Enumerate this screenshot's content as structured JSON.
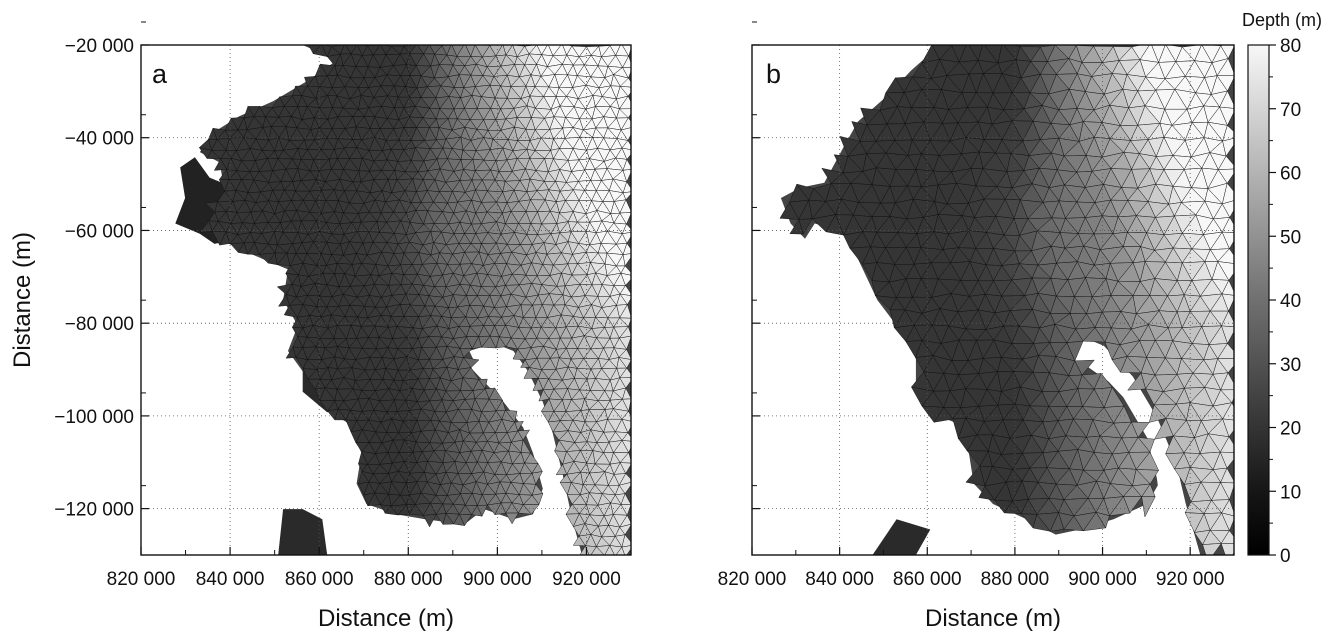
{
  "chart_data": [
    {
      "type": "heatmap",
      "panel_label": "a",
      "xlabel": "Distance (m)",
      "ylabel": "Distance (m)",
      "xlim": [
        820000,
        930000
      ],
      "ylim": [
        -130000,
        -20000
      ],
      "xticks": [
        820000,
        840000,
        860000,
        880000,
        900000,
        920000
      ],
      "xtick_labels": [
        "820 000",
        "840 000",
        "860 000",
        "880 000",
        "900 000",
        "920 000"
      ],
      "yticks": [
        -20000,
        -40000,
        -60000,
        -80000,
        -100000,
        -120000
      ],
      "ytick_labels": [
        "−20 000",
        "−40 000",
        "−60 000",
        "−80 000",
        "−100 000",
        "−120 000"
      ],
      "grid": true,
      "mesh": "fine unstructured triangular mesh",
      "deep_basin_depth_m": 45,
      "nearshore_depth_m": 15,
      "offshore_depth_m": 80
    },
    {
      "type": "heatmap",
      "panel_label": "b",
      "xlabel": "Distance (m)",
      "ylabel": "",
      "xlim": [
        820000,
        930000
      ],
      "ylim": [
        -130000,
        -20000
      ],
      "xticks": [
        820000,
        840000,
        860000,
        880000,
        900000,
        920000
      ],
      "xtick_labels": [
        "820 000",
        "840 000",
        "860 000",
        "880 000",
        "900 000",
        "920 000"
      ],
      "grid": true,
      "mesh": "coarser unstructured triangular mesh",
      "deep_basin_depth_m": 45,
      "nearshore_depth_m": 15,
      "offshore_depth_m": 80
    }
  ],
  "colorbar": {
    "title": "Depth (m)",
    "range": [
      0,
      80
    ],
    "ticks": [
      0,
      10,
      20,
      30,
      40,
      50,
      60,
      70,
      80
    ],
    "tick_labels": [
      "0",
      "10",
      "20",
      "30",
      "40",
      "50",
      "60",
      "70",
      "80"
    ],
    "colormap": "grayscale (black = shallow, white = deep)"
  },
  "colors": {
    "land": "#ffffff",
    "mesh_lines": "#111111",
    "shallow": "#1a1a1a",
    "deep": "#f2f2f2"
  }
}
